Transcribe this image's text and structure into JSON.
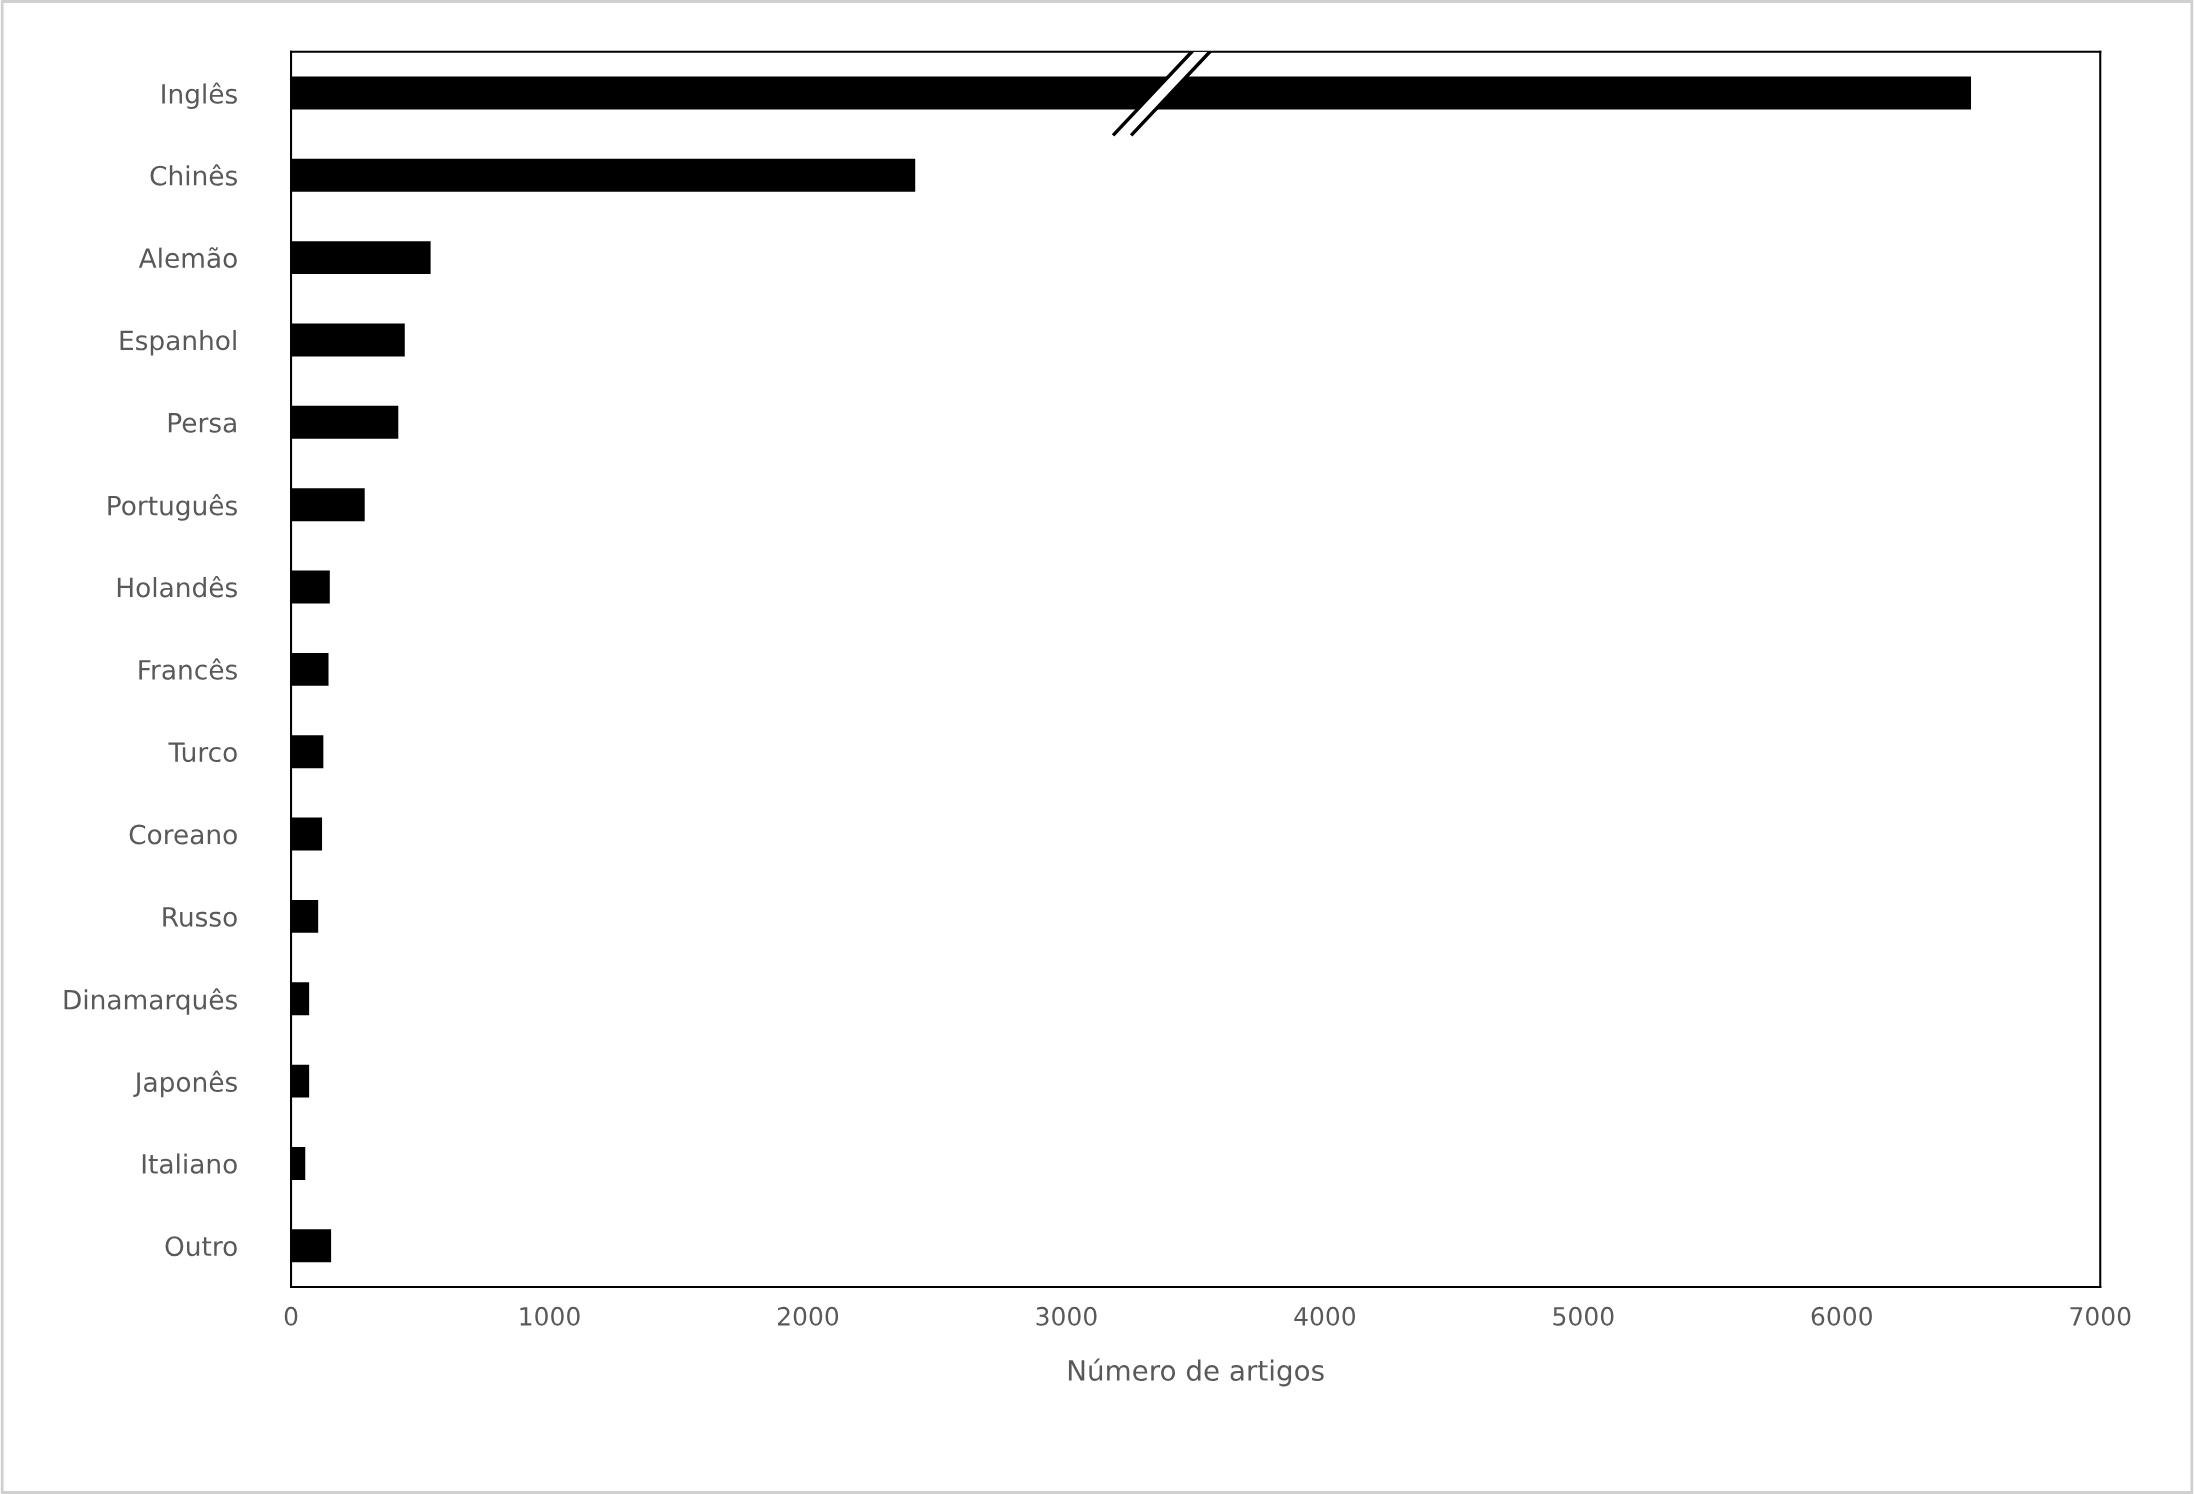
{
  "chart_data": {
    "type": "bar",
    "orientation": "horizontal",
    "xlabel": "Número de artigos",
    "categories": [
      "Inglês",
      "Chinês",
      "Alemão",
      "Espanhol",
      "Persa",
      "Português",
      "Holandês",
      "Francês",
      "Turco",
      "Coreano",
      "Russo",
      "Dinamarquês",
      "Japonês",
      "Italiano",
      "Outro"
    ],
    "values": [
      6500,
      2415,
      540,
      440,
      415,
      285,
      150,
      145,
      125,
      120,
      105,
      70,
      70,
      55,
      155
    ],
    "color": "#000000",
    "xlim": [
      0,
      7000
    ],
    "xticks": [
      0,
      1000,
      2000,
      3000,
      4000,
      5000,
      6000,
      7000
    ],
    "grid": false,
    "legend": false
  }
}
